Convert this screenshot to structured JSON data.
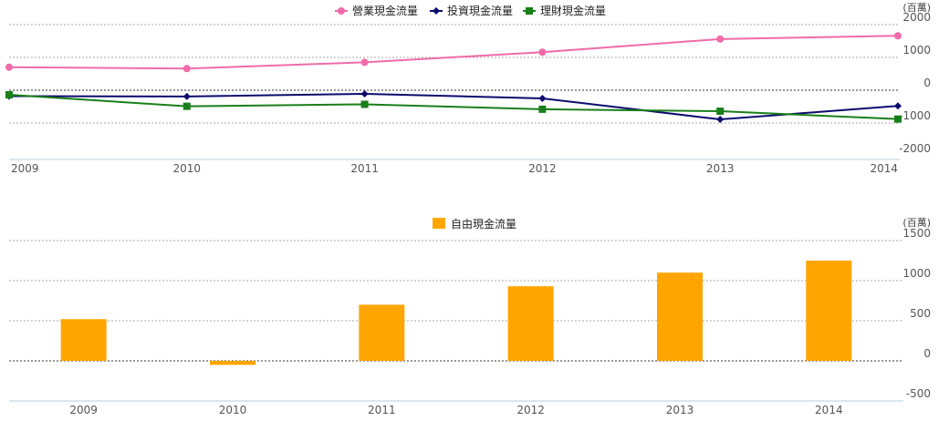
{
  "chart_data": [
    {
      "type": "line",
      "unit": "(百萬)",
      "x": [
        "2009",
        "2010",
        "2011",
        "2012",
        "2013",
        "2014"
      ],
      "series": [
        {
          "name": "營業現金流量",
          "color": "#f06ba8",
          "marker": "circle",
          "values": [
            700,
            660,
            850,
            1160,
            1560,
            1660
          ]
        },
        {
          "name": "投資現金流量",
          "color": "#0b0b6e",
          "marker": "diamond",
          "values": [
            -180,
            -190,
            -110,
            -250,
            -890,
            -480
          ]
        },
        {
          "name": "理財現金流量",
          "color": "#1a7f1a",
          "marker": "square",
          "values": [
            -140,
            -490,
            -430,
            -580,
            -640,
            -880
          ]
        }
      ],
      "ylim": [
        -2000,
        2000
      ],
      "yticks": [
        "2000",
        "1000",
        "0",
        "-1000",
        "-2000"
      ],
      "grid": true,
      "legend_position": "top-center"
    },
    {
      "type": "bar",
      "unit": "(百萬)",
      "categories": [
        "2009",
        "2010",
        "2011",
        "2012",
        "2013",
        "2014"
      ],
      "series": [
        {
          "name": "自由現金流量",
          "color": "#ffa500",
          "values": [
            520,
            -50,
            700,
            930,
            1100,
            1250
          ]
        }
      ],
      "ylim": [
        -500,
        1500
      ],
      "yticks": [
        "1500",
        "1000",
        "500",
        "0",
        "-500"
      ],
      "grid": true,
      "legend_position": "top-center"
    }
  ]
}
